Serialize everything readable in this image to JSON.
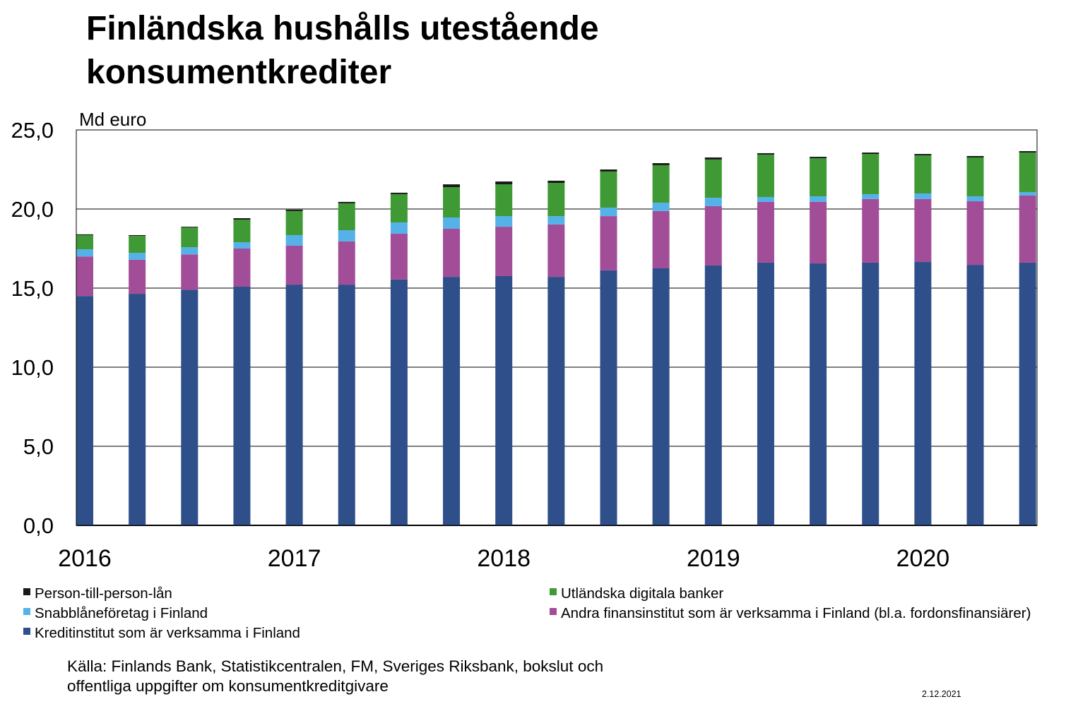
{
  "chart_data": {
    "type": "bar",
    "stacked": true,
    "title": "Finländska hushålls utestående konsumentkrediter",
    "title_lines": [
      "Finländska hushålls utestående",
      "konsumentkrediter"
    ],
    "ylabel": "Md euro",
    "ylim": [
      0,
      25
    ],
    "yticks": [
      0,
      5,
      10,
      15,
      20,
      25
    ],
    "ytick_labels": [
      "0,0",
      "5,0",
      "10,0",
      "15,0",
      "20,0",
      "25,0"
    ],
    "grid": true,
    "categories": [
      "2016 Q1",
      "2016 Q2",
      "2016 Q3",
      "2016 Q4",
      "2017 Q1",
      "2017 Q2",
      "2017 Q3",
      "2017 Q4",
      "2018 Q1",
      "2018 Q2",
      "2018 Q3",
      "2018 Q4",
      "2019 Q1",
      "2019 Q2",
      "2019 Q3",
      "2019 Q4",
      "2020 Q1",
      "2020 Q2",
      "2020 Q3"
    ],
    "xtick_labels": [
      {
        "index": 0,
        "label": "2016"
      },
      {
        "index": 4,
        "label": "2017"
      },
      {
        "index": 8,
        "label": "2018"
      },
      {
        "index": 12,
        "label": "2019"
      },
      {
        "index": 16,
        "label": "2020"
      }
    ],
    "series": [
      {
        "name": "Kreditinstitut som är verksamma i Finland",
        "color": "#2f4f8a",
        "values": [
          14.5,
          14.64,
          14.9,
          15.09,
          15.22,
          15.22,
          15.54,
          15.71,
          15.76,
          15.71,
          16.12,
          16.25,
          16.43,
          16.61,
          16.56,
          16.61,
          16.65,
          16.47,
          16.61
        ]
      },
      {
        "name": "Andra finansinstitut som är verksamma i Finland (bl.a. fordonsfinansiärer)",
        "color": "#a24d98",
        "values": [
          2.5,
          2.15,
          2.23,
          2.41,
          2.46,
          2.73,
          2.9,
          3.04,
          3.12,
          3.31,
          3.43,
          3.62,
          3.75,
          3.84,
          3.89,
          4.02,
          3.98,
          4.02,
          4.24
        ]
      },
      {
        "name": "Snabblåneföretag i Finland",
        "color": "#55b2e8",
        "values": [
          0.45,
          0.44,
          0.45,
          0.4,
          0.67,
          0.71,
          0.71,
          0.71,
          0.67,
          0.53,
          0.54,
          0.53,
          0.53,
          0.31,
          0.35,
          0.31,
          0.35,
          0.31,
          0.22
        ]
      },
      {
        "name": "Utländska digitala banker",
        "color": "#3f9a35",
        "values": [
          0.9,
          1.07,
          1.25,
          1.43,
          1.52,
          1.7,
          1.79,
          1.92,
          2.01,
          2.1,
          2.28,
          2.37,
          2.42,
          2.68,
          2.41,
          2.54,
          2.41,
          2.46,
          2.5
        ]
      },
      {
        "name": "Person-till-person-lån",
        "color": "#1a1a1a",
        "values": [
          0.05,
          0.05,
          0.05,
          0.09,
          0.09,
          0.09,
          0.09,
          0.18,
          0.18,
          0.14,
          0.13,
          0.13,
          0.13,
          0.09,
          0.09,
          0.09,
          0.09,
          0.09,
          0.09
        ]
      }
    ],
    "legend_placement": "bottom",
    "legend_order": [
      4,
      3,
      2,
      1,
      0
    ],
    "source": [
      "Källa: Finlands Bank, Statistikcentralen, FM, Sveriges Riksbank, bokslut och",
      "offentliga uppgifter om konsumentkreditgivare"
    ],
    "date": "2.12.2021"
  }
}
